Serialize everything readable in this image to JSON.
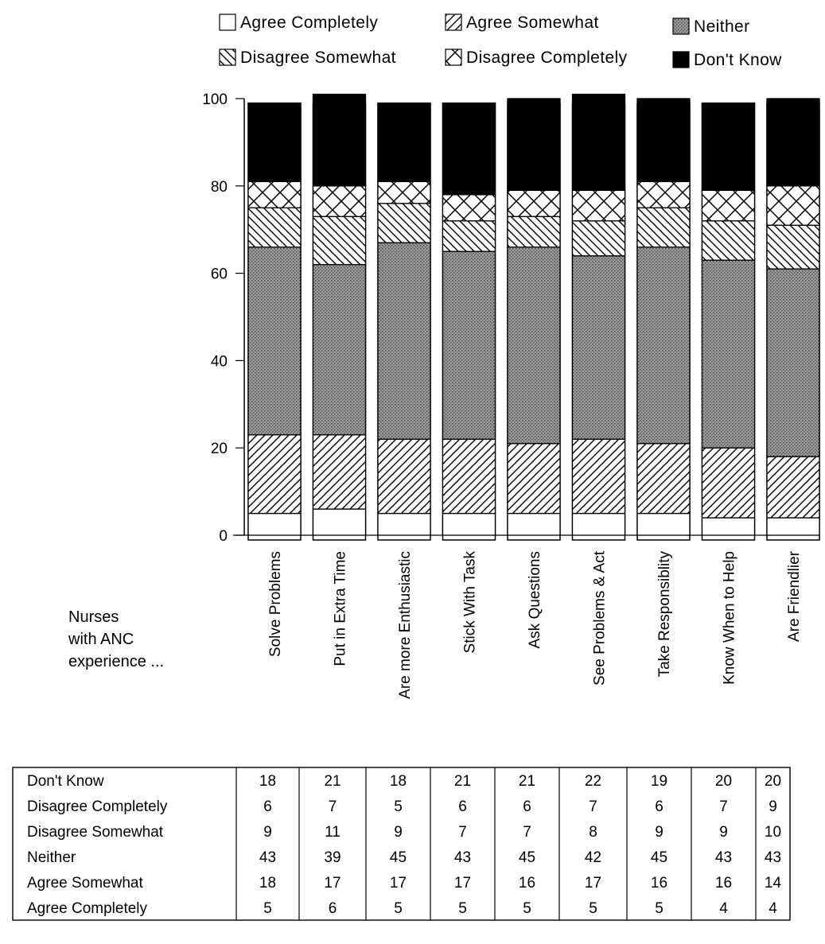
{
  "chart_data": {
    "type": "bar",
    "stacked": true,
    "categories": [
      "Solve Problems",
      "Put in Extra Time",
      "Are more Enthusiastic",
      "Stick With Task",
      "Ask Questions",
      "See Problems & Act",
      "Take Responsiblity",
      "Know When to Help",
      "Are Friendlier"
    ],
    "series": [
      {
        "name": "Agree Completely",
        "pattern": "white",
        "values": [
          5,
          6,
          5,
          5,
          5,
          5,
          5,
          4,
          4
        ]
      },
      {
        "name": "Agree Somewhat",
        "pattern": "diagonal-hatch",
        "values": [
          18,
          17,
          17,
          17,
          16,
          17,
          16,
          16,
          14
        ]
      },
      {
        "name": "Neither",
        "pattern": "gray-dots",
        "values": [
          43,
          39,
          45,
          43,
          45,
          42,
          45,
          43,
          43
        ]
      },
      {
        "name": "Disagree Somewhat",
        "pattern": "back-diagonal-hatch",
        "values": [
          9,
          11,
          9,
          7,
          7,
          8,
          9,
          9,
          10
        ]
      },
      {
        "name": "Disagree Completely",
        "pattern": "cross-hatch",
        "values": [
          6,
          7,
          5,
          6,
          6,
          7,
          6,
          7,
          9
        ]
      },
      {
        "name": "Don't Know",
        "pattern": "black",
        "values": [
          18,
          21,
          18,
          21,
          21,
          22,
          19,
          20,
          20
        ]
      }
    ],
    "ylim": [
      0,
      100
    ],
    "yticks": [
      "0",
      "20",
      "40",
      "60",
      "80",
      "100"
    ],
    "legend_position": "top",
    "side_label": [
      "Nurses",
      "with ANC",
      "experience ..."
    ],
    "table": {
      "rows": [
        {
          "label": "Don't Know",
          "values": [
            "18",
            "21",
            "18",
            "21",
            "21",
            "22",
            "19",
            "20",
            "20"
          ]
        },
        {
          "label": "Disagree Completely",
          "values": [
            "6",
            "7",
            "5",
            "6",
            "6",
            "7",
            "6",
            "7",
            "9"
          ]
        },
        {
          "label": "Disagree Somewhat",
          "values": [
            "9",
            "11",
            "9",
            "7",
            "7",
            "8",
            "9",
            "9",
            "10"
          ]
        },
        {
          "label": "Neither",
          "values": [
            "43",
            "39",
            "45",
            "43",
            "45",
            "42",
            "45",
            "43",
            "43"
          ]
        },
        {
          "label": "Agree Somewhat",
          "values": [
            "18",
            "17",
            "17",
            "17",
            "16",
            "17",
            "16",
            "16",
            "14"
          ]
        },
        {
          "label": "Agree Completely",
          "values": [
            "5",
            "6",
            "5",
            "5",
            "5",
            "5",
            "5",
            "4",
            "4"
          ]
        }
      ]
    },
    "colors": {
      "black": "#000000",
      "white": "#ffffff",
      "neither_gray": "#8c8c8c"
    }
  }
}
